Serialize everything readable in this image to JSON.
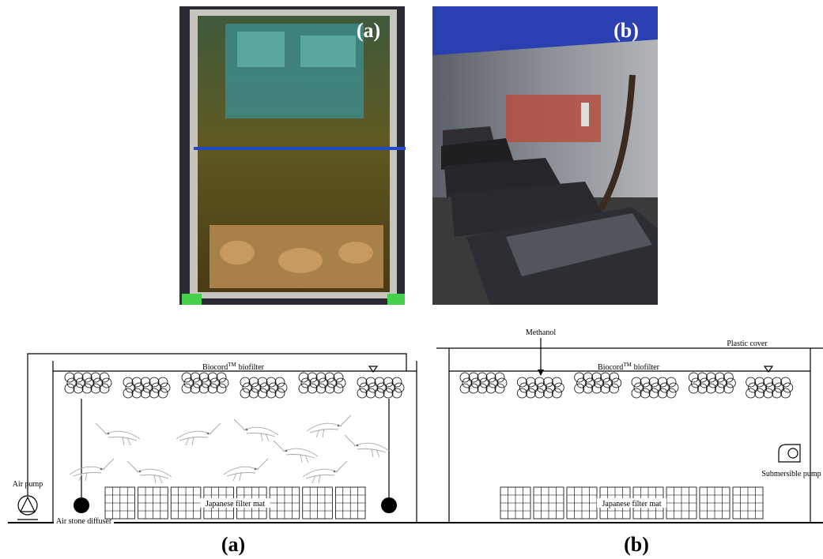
{
  "photos": [
    {
      "label": "(a)"
    },
    {
      "label": "(b)"
    }
  ],
  "diagrams": [
    {
      "biofilter_name": "Biocord",
      "trademark": "TM",
      "biofilter_suffix": "biofilter",
      "air_pump": "Air pump",
      "diffuser": "Air stone diffuser",
      "filter_mat": "Japanese filter mat",
      "caption": "(a)"
    },
    {
      "biofilter_name": "Biocord",
      "trademark": "TM",
      "biofilter_suffix": "biofilter",
      "methanol": "Methanol",
      "plastic_cover": "Plastic cover",
      "submersible_pump": "Submersible pump",
      "filter_mat": "Japanese filter mat",
      "caption": "(b)"
    }
  ]
}
